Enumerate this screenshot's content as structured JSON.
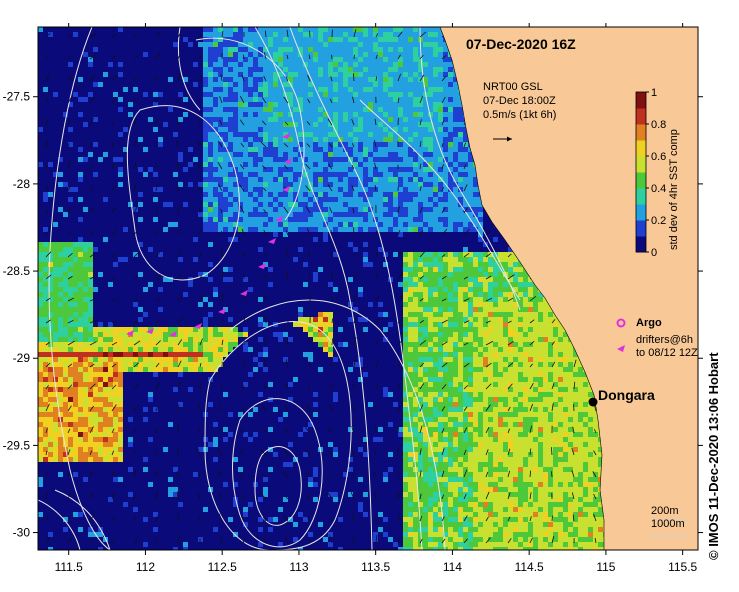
{
  "title": "07-Dec-2020 16Z",
  "current_legend": {
    "model": "NRT00 GSL",
    "time": "07-Dec 18:00Z",
    "scale": "0.5m/s (1kt 6h)"
  },
  "colorbar": {
    "title": "std dev of 4hr SST comp",
    "ticks": [
      "0",
      "0.2",
      "0.4",
      "0.6",
      "0.8",
      "1"
    ],
    "range": [
      0,
      1
    ],
    "colors": [
      "#0a0a7a",
      "#1e3fd0",
      "#22a0e0",
      "#2fd0a0",
      "#4cc83a",
      "#c8e030",
      "#f0d020",
      "#e08020",
      "#c03020",
      "#801010"
    ]
  },
  "argo_label": "Argo",
  "drifters_label": [
    "drifters@6h",
    "to 08/12 12Z"
  ],
  "place": {
    "name": "Dongara",
    "lon": 114.92,
    "lat": -29.25
  },
  "contour_legend": [
    "200m",
    "1000m"
  ],
  "credit": "© IMOS 11-Dec-2020 13:06 Hobart",
  "axes": {
    "lon_range": [
      111.3,
      115.6
    ],
    "lat_range": [
      -30.1,
      -27.1
    ],
    "x_ticks": [
      "111.5",
      "112",
      "112.5",
      "113",
      "113.5",
      "114",
      "114.5",
      "115",
      "115.5"
    ],
    "y_ticks": [
      "-27.5",
      "-28",
      "-28.5",
      "-29",
      "-29.5",
      "-30"
    ]
  },
  "land_color": "#f8c896"
}
